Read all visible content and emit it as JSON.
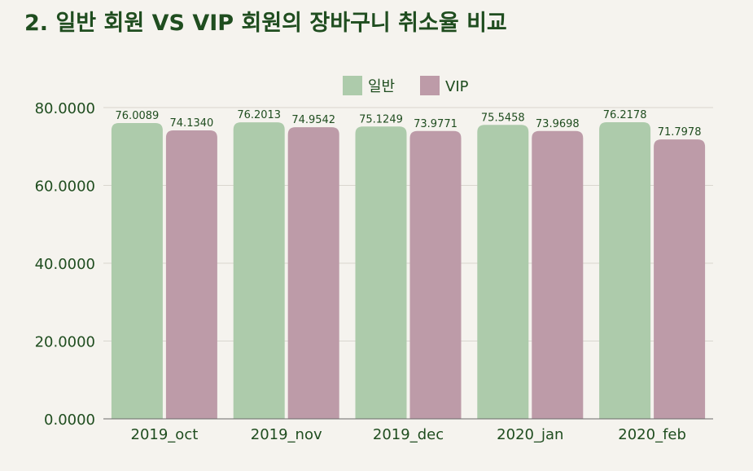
{
  "page": {
    "title": "2. 일반 회원 VS VIP 회원의 장바구니 취소율 비교"
  },
  "colors": {
    "background": "#f5f3ee",
    "title": "#1f4d1f",
    "grid": "#d9d6cf",
    "axis": "#6b6b6b"
  },
  "chart_data": {
    "type": "bar",
    "title": "2. 일반 회원 VS VIP 회원의 장바구니 취소율 비교",
    "xlabel": "",
    "ylabel": "",
    "categories": [
      "2019_oct",
      "2019_nov",
      "2019_dec",
      "2020_jan",
      "2020_feb"
    ],
    "series": [
      {
        "name": "일반",
        "color": "#adcbab",
        "values": [
          76.0089,
          76.2013,
          75.1249,
          75.5458,
          76.2178
        ],
        "labels": [
          "76.0089",
          "76.2013",
          "75.1249",
          "75.5458",
          "76.2178"
        ]
      },
      {
        "name": "VIP",
        "color": "#bd9ba8",
        "values": [
          74.134,
          74.9542,
          73.9771,
          73.9698,
          71.7978
        ],
        "labels": [
          "74.1340",
          "74.9542",
          "73.9771",
          "73.9698",
          "71.7978"
        ]
      }
    ],
    "ylim": [
      0,
      80
    ],
    "yticks": [
      0,
      20,
      40,
      60,
      80
    ],
    "ytick_labels": [
      "0.0000",
      "20.0000",
      "40.0000",
      "60.0000",
      "80.0000"
    ],
    "grid": true,
    "legend_position": "top-center"
  }
}
